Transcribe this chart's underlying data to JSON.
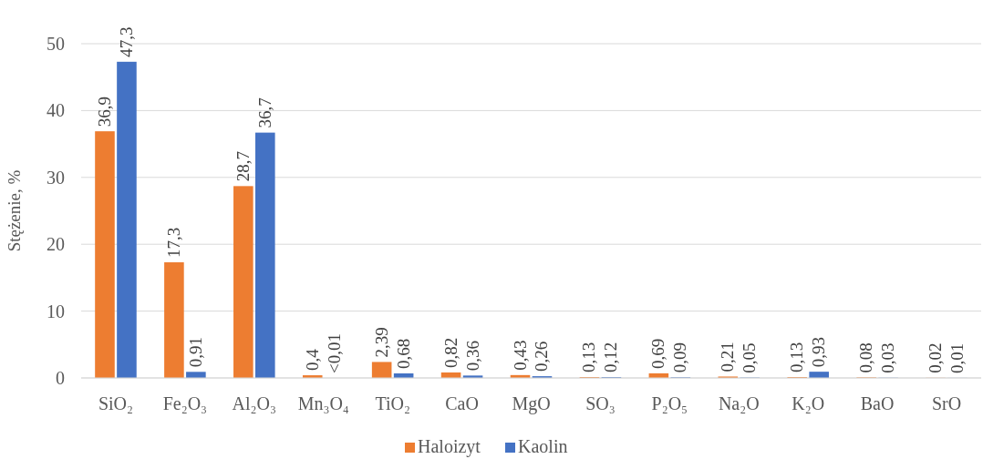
{
  "chart_data": {
    "type": "bar",
    "ylabel": "Stężenie, %",
    "categories": [
      "SiO₂",
      "Fe₂O₃",
      "Al₂O₃",
      "Mn₃O₄",
      "TiO₂",
      "CaO",
      "MgO",
      "SO₃",
      "P₂O₅",
      "Na₂O",
      "K₂O",
      "BaO",
      "SrO"
    ],
    "series": [
      {
        "name": "Haloizyt",
        "color": "#ed7d31",
        "values": [
          36.9,
          17.3,
          28.7,
          0.4,
          2.39,
          0.82,
          0.43,
          0.13,
          0.69,
          0.21,
          0.13,
          0.08,
          0.02
        ],
        "value_labels": [
          "36,9",
          "17,3",
          "28,7",
          "0,4",
          "2,39",
          "0,82",
          "0,43",
          "0,13",
          "0,69",
          "0,21",
          "0,13",
          "0,08",
          "0,02"
        ]
      },
      {
        "name": "Kaolin",
        "color": "#4472c4",
        "values": [
          47.3,
          0.91,
          36.7,
          null,
          0.68,
          0.36,
          0.26,
          0.12,
          0.09,
          0.05,
          0.93,
          0.03,
          0.01
        ],
        "value_labels": [
          "47,3",
          "0,91",
          "36,7",
          "<0,01",
          "0,68",
          "0,36",
          "0,26",
          "0,12",
          "0,09",
          "0,05",
          "0,93",
          "0,03",
          "0,01"
        ]
      }
    ],
    "ylim": [
      0,
      50
    ],
    "yticks": [
      0,
      10,
      20,
      30,
      40,
      50
    ],
    "grid": "y",
    "legend": "bottom"
  }
}
